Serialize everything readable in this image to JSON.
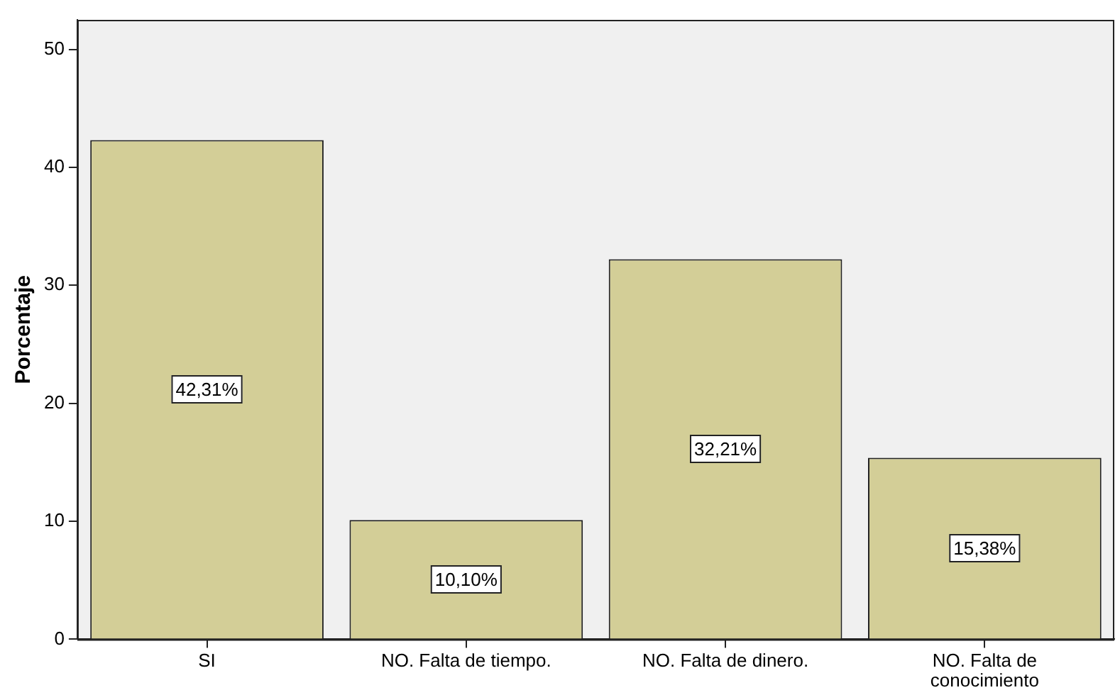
{
  "chart_data": {
    "type": "bar",
    "ylabel": "Porcentaje",
    "categories": [
      "SI",
      "NO. Falta de tiempo.",
      "NO. Falta de dinero.",
      "NO. Falta de conocimiento"
    ],
    "values": [
      42.31,
      10.1,
      32.21,
      15.38
    ],
    "value_labels": [
      "42,31%",
      "10,10%",
      "32,21%",
      "15,38%"
    ],
    "color": "#d3ce97",
    "ylim": [
      0,
      52.5
    ],
    "yticks": [
      0,
      10,
      20,
      30,
      40,
      50
    ],
    "grid": false,
    "legend": false
  }
}
